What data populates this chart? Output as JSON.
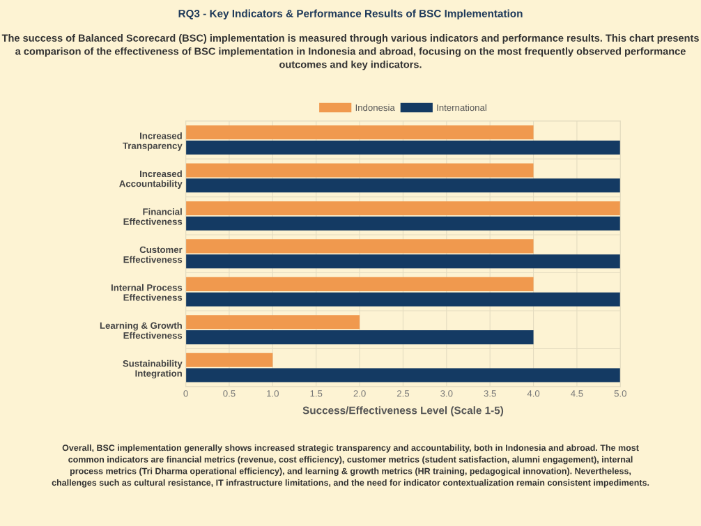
{
  "chart_data": {
    "type": "bar",
    "orientation": "horizontal",
    "title": "RQ3 - Key Indicators & Performance Results of BSC Implementation",
    "subtitle": "The success of Balanced Scorecard (BSC) implementation is measured through various indicators and performance results. This chart presents a comparison of the effectiveness of BSC implementation in Indonesia and abroad, focusing on the most frequently observed performance outcomes and key indicators.",
    "categories": [
      "Increased\nTransparency",
      "Increased\nAccountability",
      "Financial\nEffectiveness",
      "Customer\nEffectiveness",
      "Internal Process\nEffectiveness",
      "Learning & Growth\nEffectiveness",
      "Sustainability\nIntegration"
    ],
    "series": [
      {
        "name": "Indonesia",
        "color": "#f0994e",
        "values": [
          4,
          4,
          5,
          4,
          4,
          2,
          1
        ]
      },
      {
        "name": "International",
        "color": "#143a63",
        "values": [
          5,
          5,
          5,
          5,
          5,
          4,
          5
        ]
      }
    ],
    "xlabel": "Success/Effectiveness Level (Scale 1-5)",
    "xlim": [
      0,
      5
    ],
    "xticks": [
      0,
      {
        "value": 0.5,
        "label": "0.5"
      },
      {
        "value": 1,
        "label": "1.0"
      },
      {
        "value": 1.5,
        "label": "1.5"
      },
      {
        "value": 2,
        "label": "2.0"
      },
      {
        "value": 2.5,
        "label": "2.5"
      },
      {
        "value": 3,
        "label": "3.0"
      },
      {
        "value": 3.5,
        "label": "3.5"
      },
      {
        "value": 4,
        "label": "4.0"
      },
      {
        "value": 4.5,
        "label": "4.5"
      },
      {
        "value": 5,
        "label": "5.0"
      }
    ],
    "grid": true,
    "legend": "top",
    "annotations": [
      "Overall, BSC implementation generally shows increased strategic transparency and accountability, both in Indonesia and abroad. The most common indicators are financial metrics (revenue, cost efficiency), customer metrics (student satisfaction, alumni engagement), internal process metrics (Tri Dharma operational efficiency), and learning & growth metrics (HR training, pedagogical innovation). Nevertheless, challenges such as cultural resistance, IT infrastructure limitations, and the need for indicator contextualization remain consistent impediments."
    ]
  }
}
